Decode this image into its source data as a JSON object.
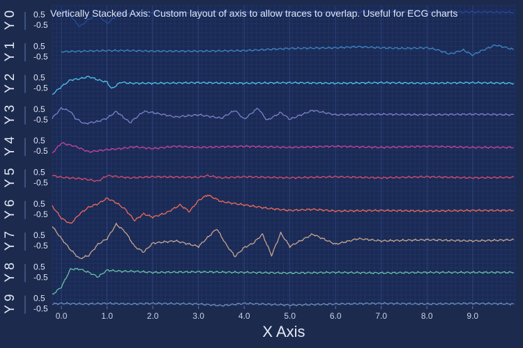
{
  "chart_data": {
    "type": "line",
    "title": "Vertically Stacked Axis: Custom layout of axis to allow traces to overlap. Useful for ECG charts",
    "xlabel": "X Axis",
    "xlim": [
      -0.2,
      9.95
    ],
    "xticks": [
      0.0,
      1.0,
      2.0,
      3.0,
      4.0,
      5.0,
      6.0,
      7.0,
      8.0,
      9.0
    ],
    "xtick_labels": [
      "0.0",
      "1.0",
      "2.0",
      "3.0",
      "4.0",
      "5.0",
      "6.0",
      "7.0",
      "8.0",
      "9.0"
    ],
    "background": "#1c2a4e",
    "grid": true,
    "y_axis_tick_labels": [
      "0.5",
      "-0.5"
    ],
    "series": [
      {
        "name": "Y 0",
        "color": "#274a9c",
        "x": [
          0,
          0.2,
          0.4,
          0.6,
          0.8,
          1.0,
          1.2,
          1.5,
          2.0,
          2.5,
          3.0,
          4.0,
          5.0,
          6.0,
          7.0,
          8.0,
          9.0,
          9.9
        ],
        "y": [
          0.9,
          0.4,
          -0.6,
          0.1,
          0.5,
          -0.3,
          0.4,
          0.6,
          0.7,
          0.65,
          0.75,
          0.7,
          0.72,
          0.7,
          0.75,
          0.7,
          0.73,
          0.7
        ]
      },
      {
        "name": "Y 1",
        "color": "#3d86c6",
        "x": [
          0,
          0.5,
          1.0,
          1.5,
          2.0,
          3.0,
          4.0,
          5.0,
          6.0,
          6.5,
          7.0,
          7.5,
          8.0,
          8.2,
          8.5,
          8.8,
          9.0,
          9.2,
          9.5,
          9.7,
          9.9
        ],
        "y": [
          0.0,
          0.05,
          0.1,
          0.1,
          0.05,
          0.05,
          0.1,
          0.3,
          0.35,
          0.45,
          0.35,
          0.3,
          0.35,
          0.2,
          -0.2,
          0.15,
          -0.3,
          0.1,
          0.6,
          0.4,
          0.2
        ]
      },
      {
        "name": "Y 2",
        "color": "#4fc3ea",
        "x": [
          -0.2,
          0,
          0.2,
          0.4,
          0.6,
          0.8,
          1.0,
          1.1,
          1.3,
          1.5,
          2.0,
          3.0,
          4.0,
          5.0,
          6.0,
          7.0,
          8.0,
          9.0,
          9.9
        ],
        "y": [
          -1.0,
          -0.3,
          0.3,
          0.4,
          0.6,
          0.3,
          0.1,
          -0.5,
          0.1,
          0.0,
          0.0,
          0.05,
          0.0,
          0.05,
          0.0,
          0.05,
          0.0,
          0.05,
          0.0
        ]
      },
      {
        "name": "Y 3",
        "color": "#7d7fc8",
        "x": [
          -0.2,
          0,
          0.2,
          0.3,
          0.5,
          0.8,
          1.0,
          1.2,
          1.5,
          1.8,
          2.0,
          2.5,
          3.0,
          3.5,
          3.8,
          4.0,
          4.3,
          4.5,
          4.8,
          5.0,
          5.5,
          6.0,
          7.0,
          8.0,
          9.0,
          9.9
        ],
        "y": [
          -0.3,
          0.6,
          0.3,
          -0.3,
          -0.8,
          -0.6,
          -0.3,
          0.3,
          -0.7,
          0.3,
          0.2,
          -0.2,
          0.0,
          -0.3,
          0.4,
          -0.4,
          0.6,
          -0.5,
          0.2,
          -0.4,
          0.4,
          0.0,
          0.05,
          0.0,
          0.05,
          0.0
        ]
      },
      {
        "name": "Y 4",
        "color": "#c9439a",
        "x": [
          -0.2,
          0,
          0.3,
          0.6,
          1.0,
          1.3,
          1.6,
          2.0,
          2.5,
          3.0,
          4.0,
          5.0,
          6.0,
          7.0,
          8.0,
          9.0,
          9.9
        ],
        "y": [
          -0.6,
          0.3,
          0.0,
          -0.5,
          -0.3,
          -0.2,
          -0.05,
          -0.2,
          0.0,
          -0.1,
          0.0,
          -0.1,
          0.0,
          -0.1,
          0.0,
          -0.1,
          -0.1
        ]
      },
      {
        "name": "Y 5",
        "color": "#d84b6e",
        "x": [
          -0.2,
          0,
          0.5,
          0.8,
          1.0,
          1.5,
          2.0,
          3.0,
          3.2,
          3.5,
          4.0,
          5.0,
          6.0,
          7.0,
          8.0,
          9.0,
          9.9
        ],
        "y": [
          0.2,
          0.05,
          -0.1,
          -0.3,
          0.2,
          0.0,
          0.1,
          0.05,
          0.2,
          0.0,
          0.1,
          0.0,
          0.1,
          0.0,
          0.1,
          0.0,
          0.05
        ]
      },
      {
        "name": "Y 6",
        "color": "#f06a5a",
        "x": [
          -0.2,
          0,
          0.2,
          0.4,
          0.6,
          0.8,
          1.0,
          1.2,
          1.4,
          1.6,
          1.8,
          2.0,
          2.3,
          2.6,
          2.8,
          3.0,
          3.2,
          3.5,
          4.0,
          4.5,
          5.0,
          5.5,
          6.0,
          7.0,
          8.0,
          9.0,
          9.9
        ],
        "y": [
          0.3,
          -0.8,
          -1.3,
          -0.4,
          0.2,
          0.5,
          1.0,
          0.6,
          0.0,
          -1.0,
          -0.4,
          -0.7,
          -0.3,
          0.4,
          -0.2,
          0.8,
          1.3,
          0.7,
          0.4,
          0.1,
          -0.1,
          0.0,
          -0.15,
          -0.1,
          -0.15,
          -0.1,
          -0.1
        ]
      },
      {
        "name": "Y 7",
        "color": "#c8a68e",
        "x": [
          -0.2,
          0,
          0.2,
          0.4,
          0.6,
          0.8,
          1.0,
          1.2,
          1.4,
          1.6,
          1.8,
          2.0,
          2.5,
          3.0,
          3.2,
          3.4,
          3.6,
          3.8,
          4.0,
          4.2,
          4.4,
          4.6,
          4.8,
          5.0,
          5.5,
          6.0,
          6.5,
          7.0,
          8.0,
          9.0,
          9.9
        ],
        "y": [
          1.3,
          0.2,
          -0.8,
          -1.6,
          -1.3,
          -0.3,
          0.2,
          1.5,
          0.8,
          -0.5,
          -1.0,
          -0.2,
          0.0,
          -0.5,
          0.3,
          1.1,
          -0.3,
          -1.4,
          -0.6,
          -0.2,
          0.6,
          -1.3,
          0.7,
          -0.5,
          0.6,
          -0.3,
          0.2,
          0.0,
          0.1,
          0.0,
          0.1
        ]
      },
      {
        "name": "Y 8",
        "color": "#66c2a5",
        "x": [
          -0.2,
          0,
          0.2,
          0.4,
          0.6,
          0.8,
          1.0,
          1.3,
          1.6,
          2.0,
          3.0,
          4.0,
          5.0,
          6.0,
          7.0,
          8.0,
          9.0,
          9.9
        ],
        "y": [
          -2.0,
          -1.3,
          0.3,
          0.3,
          0.0,
          -0.4,
          0.2,
          0.1,
          0.1,
          0.0,
          0.05,
          0.0,
          -0.05,
          0.0,
          -0.05,
          0.0,
          0.0,
          0.0
        ]
      },
      {
        "name": "Y 9",
        "color": "#6d8fb5",
        "x": [
          -0.2,
          0,
          0.5,
          1.0,
          1.5,
          2.0,
          3.0,
          3.5,
          4.0,
          5.0,
          6.0,
          7.0,
          8.0,
          9.0,
          9.9
        ],
        "y": [
          0.0,
          0.05,
          0.0,
          0.05,
          0.0,
          0.05,
          0.0,
          -0.15,
          0.05,
          -0.1,
          0.0,
          0.05,
          0.0,
          0.05,
          0.0
        ]
      }
    ]
  }
}
